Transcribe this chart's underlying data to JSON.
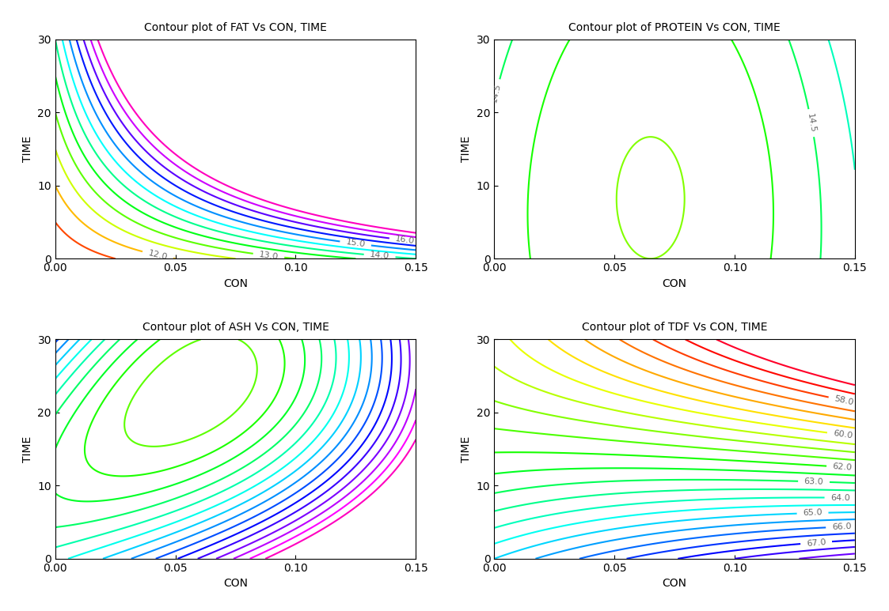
{
  "titles": [
    "Contour plot of FAT Vs CON, TIME",
    "Contour plot of PROTEIN Vs CON, TIME",
    "Contour plot of ASH Vs CON, TIME",
    "Contour plot of TDF Vs CON, TIME"
  ],
  "xlabel": "CON",
  "ylabel": "TIME",
  "xlim": [
    0.0,
    0.15
  ],
  "ylim": [
    0.0,
    30.0
  ],
  "xticks": [
    0.0,
    0.05,
    0.1,
    0.15
  ],
  "yticks": [
    0,
    10,
    20,
    30
  ],
  "figsize": [
    11.23,
    7.73
  ],
  "dpi": 100
}
